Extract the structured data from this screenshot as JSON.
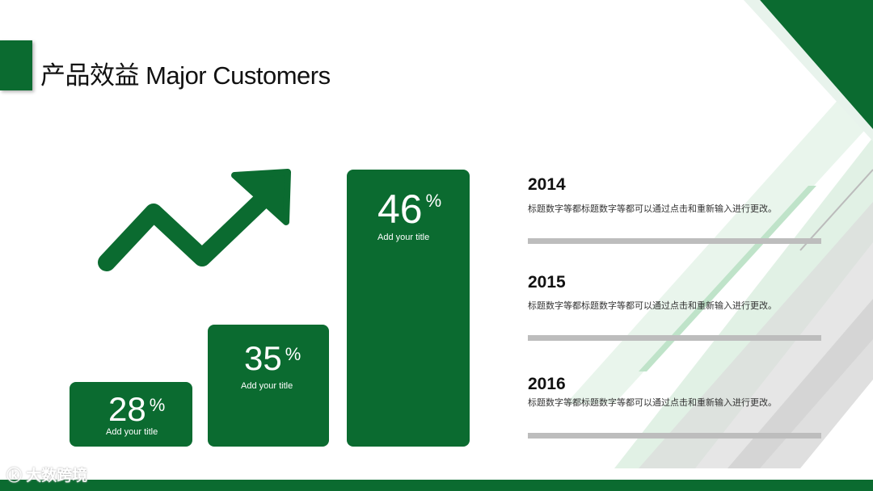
{
  "title": "产品效益 Major Customers",
  "bars": [
    {
      "value": "28",
      "unit": "%",
      "label": "Add your title"
    },
    {
      "value": "35",
      "unit": "%",
      "label": "Add your title"
    },
    {
      "value": "46",
      "unit": "%",
      "label": "Add your title"
    }
  ],
  "timeline": [
    {
      "year": "2014",
      "text": "标题数字等都标题数字等都可以通过点击和重新输入进行更改。"
    },
    {
      "year": "2015",
      "text": "标题数字等都标题数字等都可以通过点击和重新输入进行更改。"
    },
    {
      "year": "2016",
      "text": "标题数字等都标题数字等都可以通过点击和重新输入进行更改。"
    }
  ],
  "watermark": "大数跨境",
  "colors": {
    "accent": "#0b6b30",
    "divider": "#bdbdbd"
  }
}
